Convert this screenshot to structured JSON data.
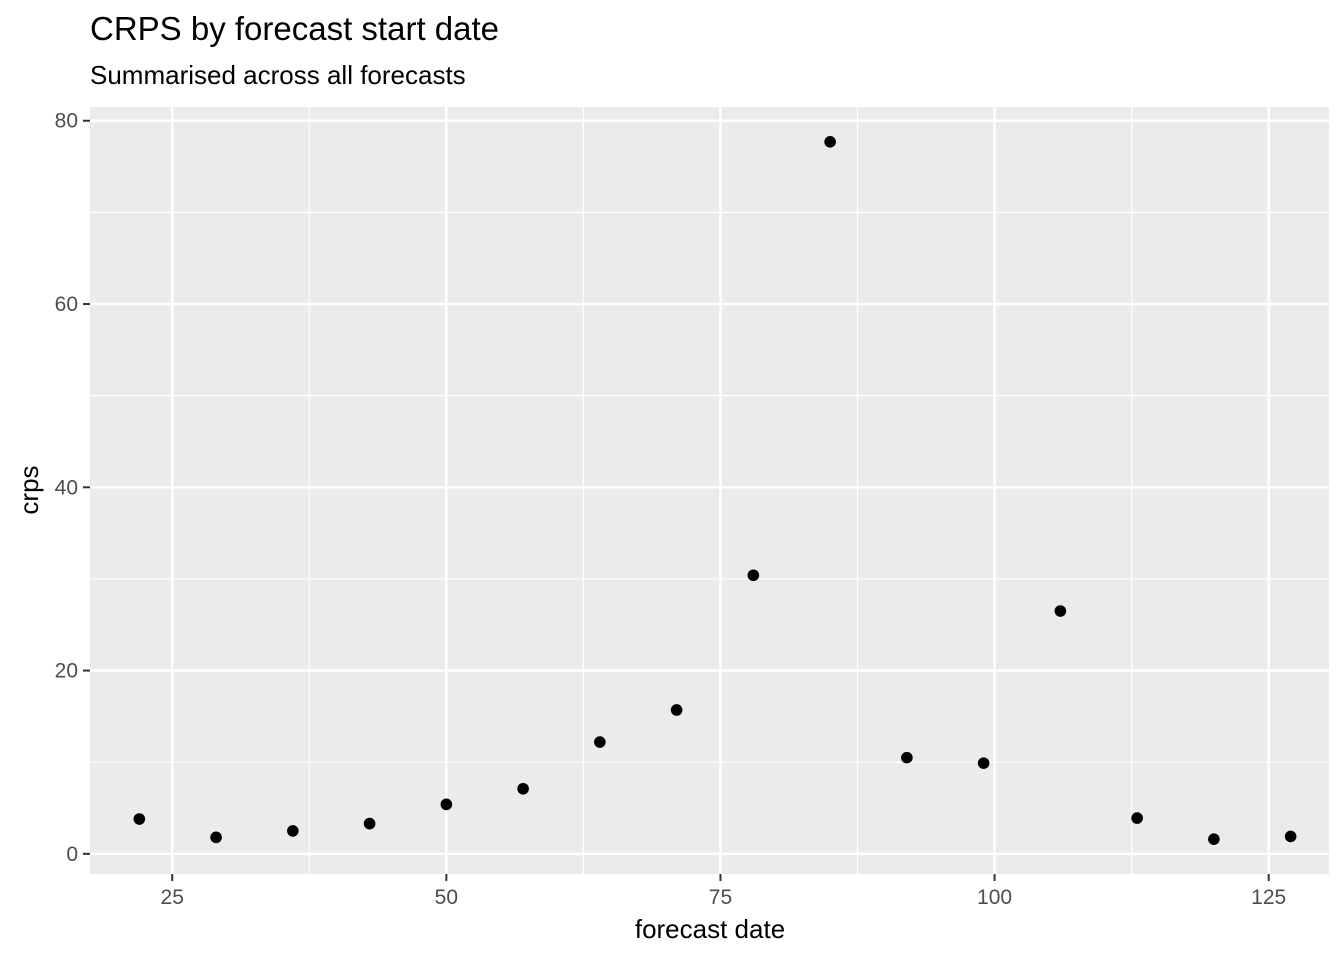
{
  "chart_data": {
    "type": "scatter",
    "title": "CRPS by forecast start date",
    "subtitle": "Summarised across all forecasts",
    "xlabel": "forecast date",
    "ylabel": "crps",
    "xlim": [
      17.5,
      130.5
    ],
    "ylim": [
      -2.2,
      81.5
    ],
    "x_ticks": [
      25,
      50,
      75,
      100,
      125
    ],
    "x_tick_labels": [
      "25",
      "50",
      "75",
      "100",
      "125"
    ],
    "y_ticks": [
      0,
      20,
      40,
      60,
      80
    ],
    "y_tick_labels": [
      "0",
      "20",
      "40",
      "60",
      "80"
    ],
    "grid": true,
    "legend": "none",
    "colors": {
      "panel_background": "#ebebeb",
      "grid_line": "#ffffff",
      "point": "#000000"
    },
    "points": [
      {
        "x": 22,
        "y": 3.8
      },
      {
        "x": 29,
        "y": 1.8
      },
      {
        "x": 36,
        "y": 2.5
      },
      {
        "x": 43,
        "y": 3.3
      },
      {
        "x": 50,
        "y": 5.4
      },
      {
        "x": 57,
        "y": 7.1
      },
      {
        "x": 64,
        "y": 12.2
      },
      {
        "x": 71,
        "y": 15.7
      },
      {
        "x": 78,
        "y": 30.4
      },
      {
        "x": 85,
        "y": 77.7
      },
      {
        "x": 92,
        "y": 10.5
      },
      {
        "x": 99,
        "y": 9.9
      },
      {
        "x": 106,
        "y": 26.5
      },
      {
        "x": 113,
        "y": 3.9
      },
      {
        "x": 120,
        "y": 1.6
      },
      {
        "x": 127,
        "y": 1.9
      }
    ]
  }
}
